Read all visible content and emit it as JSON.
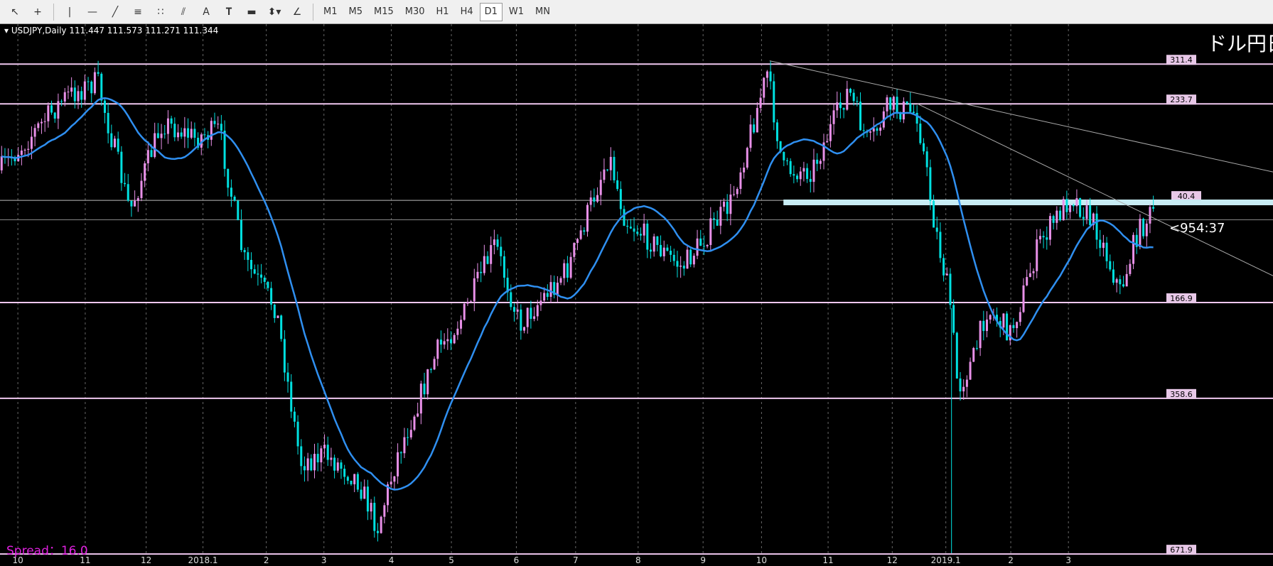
{
  "toolbar": {
    "timeframes": [
      "M1",
      "M5",
      "M15",
      "M30",
      "H1",
      "H4",
      "D1",
      "W1",
      "MN"
    ],
    "active": "D1"
  },
  "chart": {
    "symbol": "USDJPY,Daily",
    "quote": "111.447 111.573 111.271 111.344",
    "title": "ドル円日",
    "levels": [
      "311.4",
      "233.7",
      "40.4",
      "166.9",
      "358.6",
      "671.9"
    ],
    "countdown": "<954:37",
    "spread": "Spread：16.0",
    "dates": [
      "10",
      "11",
      "12",
      "2018.1",
      "2",
      "3",
      "4",
      "5",
      "6",
      "7",
      "8",
      "9",
      "10",
      "11",
      "12",
      "2019.1",
      "2",
      "3"
    ]
  }
}
